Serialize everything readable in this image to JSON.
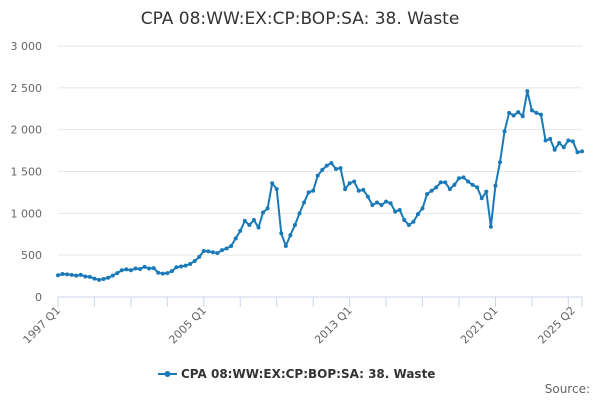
{
  "chart_data": {
    "type": "line",
    "title": "CPA 08:WW:EX:CP:BOP:SA: 38. Waste",
    "xlabel": "",
    "ylabel": "",
    "ylim": [
      0,
      3000
    ],
    "yticks": [
      0,
      500,
      1000,
      1500,
      2000,
      2500,
      3000
    ],
    "ytick_labels": [
      "0",
      "500",
      "1 000",
      "1 500",
      "2 000",
      "2 500",
      "3 000"
    ],
    "xtick_labels": [
      "1997 Q1",
      "2005 Q1",
      "2013 Q1",
      "2021 Q1",
      "2025 Q2"
    ],
    "xtick_indices": [
      0,
      32,
      64,
      96,
      113
    ],
    "grid": "horizontal",
    "legend_position": "bottom",
    "color": "#1a7ab8",
    "series": [
      {
        "name": "CPA 08:WW:EX:CP:BOP:SA: 38. Waste",
        "values": [
          260,
          275,
          270,
          265,
          255,
          265,
          245,
          240,
          220,
          205,
          215,
          230,
          255,
          285,
          320,
          330,
          320,
          340,
          335,
          360,
          340,
          345,
          290,
          280,
          285,
          310,
          355,
          365,
          375,
          395,
          430,
          480,
          550,
          545,
          535,
          525,
          560,
          580,
          610,
          700,
          790,
          910,
          860,
          920,
          830,
          1010,
          1060,
          1360,
          1290,
          760,
          610,
          740,
          860,
          1000,
          1130,
          1250,
          1270,
          1450,
          1520,
          1570,
          1600,
          1530,
          1540,
          1290,
          1360,
          1380,
          1270,
          1280,
          1200,
          1100,
          1130,
          1100,
          1140,
          1120,
          1020,
          1040,
          920,
          860,
          900,
          990,
          1060,
          1230,
          1270,
          1310,
          1370,
          1370,
          1290,
          1340,
          1420,
          1430,
          1380,
          1340,
          1310,
          1180,
          1260,
          840,
          1330,
          1610,
          1980,
          2200,
          2170,
          2210,
          2160,
          2460,
          2230,
          2200,
          2180,
          1870,
          1890,
          1760,
          1840,
          1790,
          1870,
          1860,
          1730,
          1740
        ]
      }
    ]
  },
  "source_label": "Source:"
}
